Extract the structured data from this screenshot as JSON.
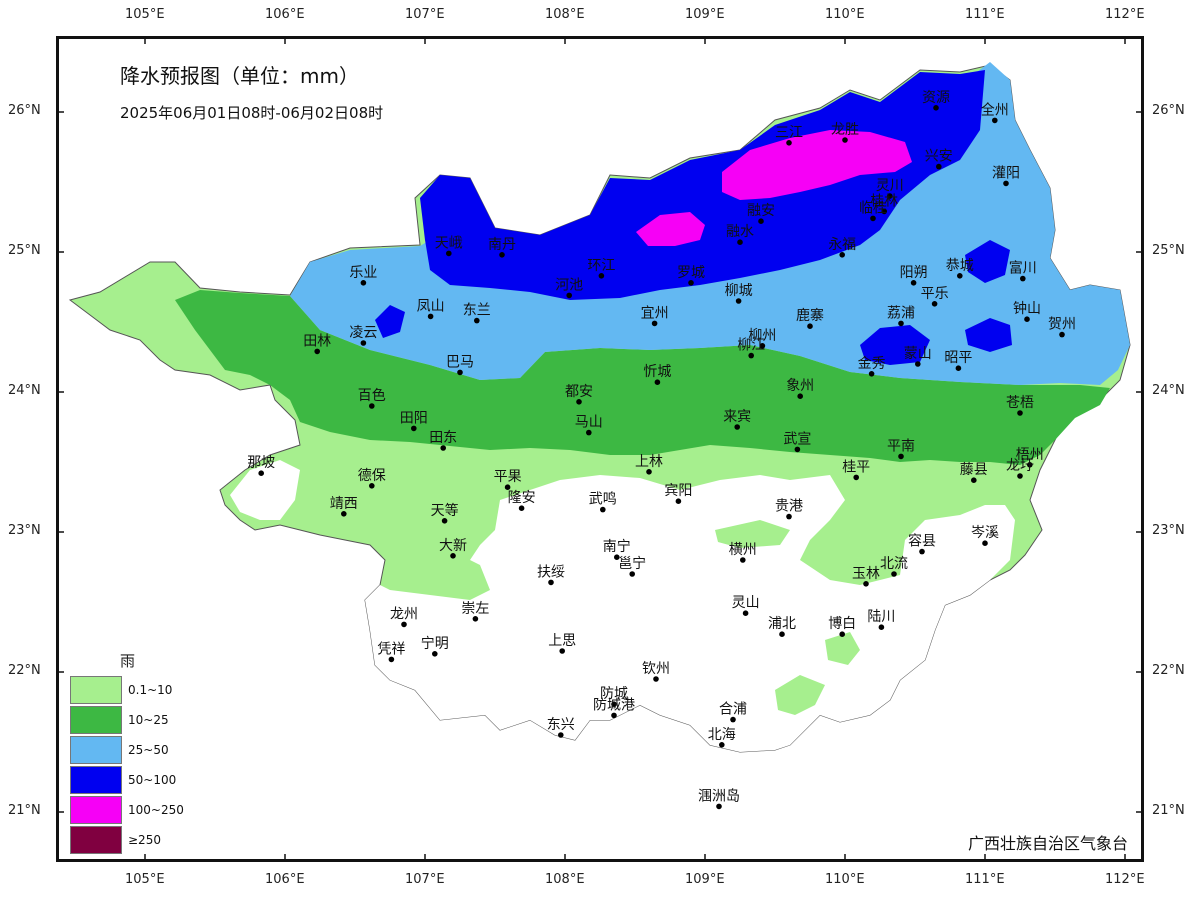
{
  "title": "降水预报图（单位：mm）",
  "subtitle": "2025年06月01日08时-06月02日08时",
  "credit": "广西壮族自治区气象台",
  "axes": {
    "lon_ticks": [
      "105°E",
      "106°E",
      "107°E",
      "108°E",
      "109°E",
      "110°E",
      "111°E",
      "112°E"
    ],
    "lat_ticks": [
      "26°N",
      "25°N",
      "24°N",
      "23°N",
      "22°N",
      "21°N"
    ]
  },
  "legend": {
    "title": "雨",
    "items": [
      {
        "label": "0.1~10",
        "color": "#a6ef8e"
      },
      {
        "label": "10~25",
        "color": "#3db843"
      },
      {
        "label": "25~50",
        "color": "#63b8f2"
      },
      {
        "label": "50~100",
        "color": "#0000f0"
      },
      {
        "label": "100~250",
        "color": "#f600f6"
      },
      {
        "label": "≥250",
        "color": "#800040"
      }
    ]
  },
  "cities": [
    {
      "name": "资源",
      "lon": 110.65,
      "lat": 26.03
    },
    {
      "name": "全州",
      "lon": 111.07,
      "lat": 25.94
    },
    {
      "name": "三江",
      "lon": 109.6,
      "lat": 25.78
    },
    {
      "name": "龙胜",
      "lon": 110.0,
      "lat": 25.8
    },
    {
      "name": "兴安",
      "lon": 110.67,
      "lat": 25.61
    },
    {
      "name": "灌阳",
      "lon": 111.15,
      "lat": 25.49
    },
    {
      "name": "灵川",
      "lon": 110.32,
      "lat": 25.4
    },
    {
      "name": "桂林",
      "lon": 110.28,
      "lat": 25.29
    },
    {
      "name": "临桂",
      "lon": 110.2,
      "lat": 25.24
    },
    {
      "name": "融安",
      "lon": 109.4,
      "lat": 25.22
    },
    {
      "name": "融水",
      "lon": 109.25,
      "lat": 25.07
    },
    {
      "name": "永福",
      "lon": 109.98,
      "lat": 24.98
    },
    {
      "name": "天峨",
      "lon": 107.17,
      "lat": 24.99
    },
    {
      "name": "南丹",
      "lon": 107.55,
      "lat": 24.98
    },
    {
      "name": "恭城",
      "lon": 110.82,
      "lat": 24.83
    },
    {
      "name": "富川",
      "lon": 111.27,
      "lat": 24.81
    },
    {
      "name": "乐业",
      "lon": 106.56,
      "lat": 24.78
    },
    {
      "name": "环江",
      "lon": 108.26,
      "lat": 24.83
    },
    {
      "name": "罗城",
      "lon": 108.9,
      "lat": 24.78
    },
    {
      "name": "阳朔",
      "lon": 110.49,
      "lat": 24.78
    },
    {
      "name": "平乐",
      "lon": 110.64,
      "lat": 24.63
    },
    {
      "name": "河池",
      "lon": 108.03,
      "lat": 24.69
    },
    {
      "name": "柳城",
      "lon": 109.24,
      "lat": 24.65
    },
    {
      "name": "钟山",
      "lon": 111.3,
      "lat": 24.52
    },
    {
      "name": "贺州",
      "lon": 111.55,
      "lat": 24.41
    },
    {
      "name": "凤山",
      "lon": 107.04,
      "lat": 24.54
    },
    {
      "name": "东兰",
      "lon": 107.37,
      "lat": 24.51
    },
    {
      "name": "宜州",
      "lon": 108.64,
      "lat": 24.49
    },
    {
      "name": "鹿寨",
      "lon": 109.75,
      "lat": 24.47
    },
    {
      "name": "荔浦",
      "lon": 110.4,
      "lat": 24.49
    },
    {
      "name": "凌云",
      "lon": 106.56,
      "lat": 24.35
    },
    {
      "name": "柳州",
      "lon": 109.41,
      "lat": 24.33
    },
    {
      "name": "田林",
      "lon": 106.23,
      "lat": 24.29
    },
    {
      "name": "柳江",
      "lon": 109.33,
      "lat": 24.26
    },
    {
      "name": "蒙山",
      "lon": 110.52,
      "lat": 24.2
    },
    {
      "name": "金秀",
      "lon": 110.19,
      "lat": 24.13
    },
    {
      "name": "昭平",
      "lon": 110.81,
      "lat": 24.17
    },
    {
      "name": "巴马",
      "lon": 107.25,
      "lat": 24.14
    },
    {
      "name": "忻城",
      "lon": 108.66,
      "lat": 24.07
    },
    {
      "name": "象州",
      "lon": 109.68,
      "lat": 23.97
    },
    {
      "name": "都安",
      "lon": 108.1,
      "lat": 23.93
    },
    {
      "name": "百色",
      "lon": 106.62,
      "lat": 23.9
    },
    {
      "name": "苍梧",
      "lon": 111.25,
      "lat": 23.85
    },
    {
      "name": "田阳",
      "lon": 106.92,
      "lat": 23.74
    },
    {
      "name": "来宾",
      "lon": 109.23,
      "lat": 23.75
    },
    {
      "name": "马山",
      "lon": 108.17,
      "lat": 23.71
    },
    {
      "name": "田东",
      "lon": 107.13,
      "lat": 23.6
    },
    {
      "name": "武宣",
      "lon": 109.66,
      "lat": 23.59
    },
    {
      "name": "平南",
      "lon": 110.4,
      "lat": 23.54
    },
    {
      "name": "梧州",
      "lon": 111.32,
      "lat": 23.48
    },
    {
      "name": "那坡",
      "lon": 105.83,
      "lat": 23.42
    },
    {
      "name": "上林",
      "lon": 108.6,
      "lat": 23.43
    },
    {
      "name": "桂平",
      "lon": 110.08,
      "lat": 23.39
    },
    {
      "name": "藤县",
      "lon": 110.92,
      "lat": 23.37
    },
    {
      "name": "龙圩",
      "lon": 111.25,
      "lat": 23.4
    },
    {
      "name": "德保",
      "lon": 106.62,
      "lat": 23.33
    },
    {
      "name": "平果",
      "lon": 107.59,
      "lat": 23.32
    },
    {
      "name": "宾阳",
      "lon": 108.81,
      "lat": 23.22
    },
    {
      "name": "武鸣",
      "lon": 108.27,
      "lat": 23.16
    },
    {
      "name": "隆安",
      "lon": 107.69,
      "lat": 23.17
    },
    {
      "name": "天等",
      "lon": 107.14,
      "lat": 23.08
    },
    {
      "name": "靖西",
      "lon": 106.42,
      "lat": 23.13
    },
    {
      "name": "贵港",
      "lon": 109.6,
      "lat": 23.11
    },
    {
      "name": "岑溪",
      "lon": 111.0,
      "lat": 22.92
    },
    {
      "name": "大新",
      "lon": 107.2,
      "lat": 22.83
    },
    {
      "name": "横州",
      "lon": 109.27,
      "lat": 22.8
    },
    {
      "name": "容县",
      "lon": 110.55,
      "lat": 22.86
    },
    {
      "name": "南宁",
      "lon": 108.37,
      "lat": 22.82
    },
    {
      "name": "邕宁",
      "lon": 108.48,
      "lat": 22.7
    },
    {
      "name": "玉林",
      "lon": 110.15,
      "lat": 22.63
    },
    {
      "name": "北流",
      "lon": 110.35,
      "lat": 22.7
    },
    {
      "name": "扶绥",
      "lon": 107.9,
      "lat": 22.64
    },
    {
      "name": "崇左",
      "lon": 107.36,
      "lat": 22.38
    },
    {
      "name": "灵山",
      "lon": 109.29,
      "lat": 22.42
    },
    {
      "name": "龙州",
      "lon": 106.85,
      "lat": 22.34
    },
    {
      "name": "浦北",
      "lon": 109.55,
      "lat": 22.27
    },
    {
      "name": "博白",
      "lon": 109.98,
      "lat": 22.27
    },
    {
      "name": "陆川",
      "lon": 110.26,
      "lat": 22.32
    },
    {
      "name": "上思",
      "lon": 107.98,
      "lat": 22.15
    },
    {
      "name": "凭祥",
      "lon": 106.76,
      "lat": 22.09
    },
    {
      "name": "宁明",
      "lon": 107.07,
      "lat": 22.13
    },
    {
      "name": "钦州",
      "lon": 108.65,
      "lat": 21.95
    },
    {
      "name": "防城",
      "lon": 108.35,
      "lat": 21.77
    },
    {
      "name": "合浦",
      "lon": 109.2,
      "lat": 21.66
    },
    {
      "name": "防城港",
      "lon": 108.35,
      "lat": 21.69
    },
    {
      "name": "东兴",
      "lon": 107.97,
      "lat": 21.55
    },
    {
      "name": "北海",
      "lon": 109.12,
      "lat": 21.48
    },
    {
      "name": "涠洲岛",
      "lon": 109.1,
      "lat": 21.04
    }
  ]
}
